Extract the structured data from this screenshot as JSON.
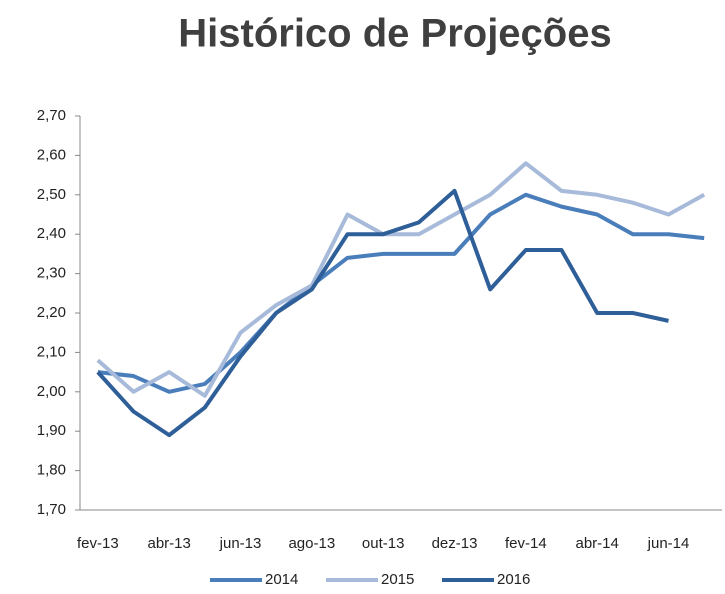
{
  "chart_data": {
    "type": "line",
    "title": "Histórico de Projeções",
    "categories": [
      "fev-13",
      null,
      "abr-13",
      null,
      "jun-13",
      null,
      "ago-13",
      null,
      "out-13",
      null,
      "dez-13",
      null,
      "fev-14",
      null,
      "abr-14",
      null,
      "jun-14",
      null
    ],
    "series": [
      {
        "name": "2014",
        "color": "#4a7ebb",
        "values": [
          2.05,
          2.04,
          2.0,
          2.02,
          2.1,
          2.2,
          2.27,
          2.34,
          2.35,
          2.35,
          2.35,
          2.45,
          2.5,
          2.47,
          2.45,
          2.4,
          2.4,
          2.39
        ]
      },
      {
        "name": "2015",
        "color": "#a7bad9",
        "values": [
          2.08,
          2.0,
          2.05,
          1.99,
          2.15,
          2.22,
          2.27,
          2.45,
          2.4,
          2.4,
          2.45,
          2.5,
          2.58,
          2.51,
          2.5,
          2.48,
          2.45,
          2.5
        ]
      },
      {
        "name": "2016",
        "color": "#2f5f98",
        "values": [
          2.05,
          1.95,
          1.89,
          1.96,
          2.09,
          2.2,
          2.26,
          2.4,
          2.4,
          2.43,
          2.51,
          2.26,
          2.36,
          2.36,
          2.2,
          2.2,
          2.18,
          null
        ]
      }
    ],
    "ylim": [
      1.7,
      2.7
    ],
    "yticks": [
      {
        "value": 1.7,
        "label": "1,70"
      },
      {
        "value": 1.8,
        "label": "1,80"
      },
      {
        "value": 1.9,
        "label": "1,90"
      },
      {
        "value": 2.0,
        "label": "2,00"
      },
      {
        "value": 2.1,
        "label": "2,10"
      },
      {
        "value": 2.2,
        "label": "2,20"
      },
      {
        "value": 2.3,
        "label": "2,30"
      },
      {
        "value": 2.4,
        "label": "2,40"
      },
      {
        "value": 2.5,
        "label": "2,50"
      },
      {
        "value": 2.6,
        "label": "2,60"
      },
      {
        "value": 2.7,
        "label": "2,70"
      }
    ],
    "grid": false,
    "legend": "bottom"
  }
}
